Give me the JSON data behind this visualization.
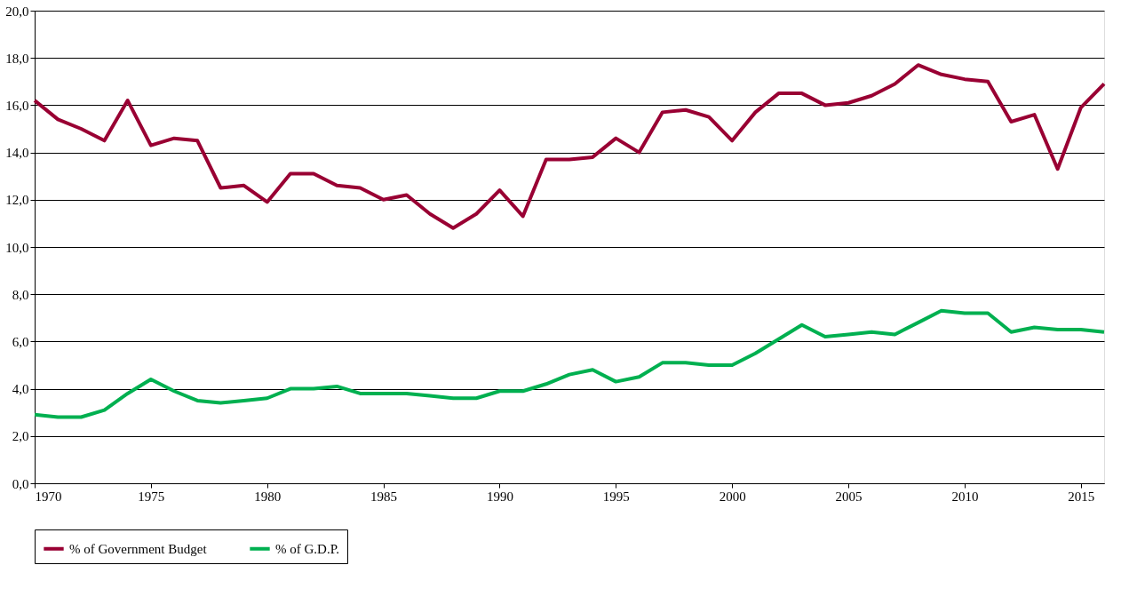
{
  "chart_data": {
    "type": "line",
    "x": [
      1970,
      1971,
      1972,
      1973,
      1974,
      1975,
      1976,
      1977,
      1978,
      1979,
      1980,
      1981,
      1982,
      1983,
      1984,
      1985,
      1986,
      1987,
      1988,
      1989,
      1990,
      1991,
      1992,
      1993,
      1994,
      1995,
      1996,
      1997,
      1998,
      1999,
      2000,
      2001,
      2002,
      2003,
      2004,
      2005,
      2006,
      2007,
      2008,
      2009,
      2010,
      2011,
      2012,
      2013,
      2014,
      2015,
      2016
    ],
    "series": [
      {
        "name": "% of Government Budget",
        "color": "#990033",
        "values": [
          16.2,
          15.4,
          15.0,
          14.5,
          16.2,
          14.3,
          14.6,
          14.5,
          12.5,
          12.6,
          11.9,
          13.1,
          13.1,
          12.6,
          12.5,
          12.0,
          12.2,
          11.4,
          10.8,
          11.4,
          12.4,
          11.3,
          13.7,
          13.7,
          13.8,
          14.6,
          14.0,
          15.7,
          15.8,
          15.5,
          14.5,
          15.7,
          16.5,
          16.5,
          16.0,
          16.1,
          16.4,
          16.9,
          17.7,
          17.3,
          17.1,
          17.0,
          15.3,
          15.6,
          13.3,
          15.9,
          16.9
        ]
      },
      {
        "name": "% of G.D.P.",
        "color": "#00b050",
        "values": [
          2.9,
          2.8,
          2.8,
          3.1,
          3.8,
          4.4,
          3.9,
          3.5,
          3.4,
          3.5,
          3.6,
          4.0,
          4.0,
          4.1,
          3.8,
          3.8,
          3.8,
          3.7,
          3.6,
          3.6,
          3.9,
          3.9,
          4.2,
          4.6,
          4.8,
          4.3,
          4.5,
          5.1,
          5.1,
          5.0,
          5.0,
          5.5,
          6.1,
          6.7,
          6.2,
          6.3,
          6.4,
          6.3,
          6.8,
          7.3,
          7.2,
          7.2,
          6.4,
          6.6,
          6.5,
          6.5,
          6.4
        ]
      }
    ],
    "xlim": [
      1970,
      2016
    ],
    "xticks": [
      1970,
      1975,
      1980,
      1985,
      1990,
      1995,
      2000,
      2005,
      2010,
      2015
    ],
    "ylim": [
      0,
      20
    ],
    "yticks": [
      {
        "value": 0,
        "label": "0,0"
      },
      {
        "value": 2,
        "label": "2,0"
      },
      {
        "value": 4,
        "label": "4,0"
      },
      {
        "value": 6,
        "label": "6,0"
      },
      {
        "value": 8,
        "label": "8,0"
      },
      {
        "value": 10,
        "label": "10,0"
      },
      {
        "value": 12,
        "label": "12,0"
      },
      {
        "value": 14,
        "label": "14,0"
      },
      {
        "value": 16,
        "label": "16,0"
      },
      {
        "value": 18,
        "label": "18,0"
      },
      {
        "value": 20,
        "label": "20,0"
      }
    ],
    "grid": "y",
    "legend": "bottom",
    "marker": "none",
    "line_style": "solid"
  }
}
